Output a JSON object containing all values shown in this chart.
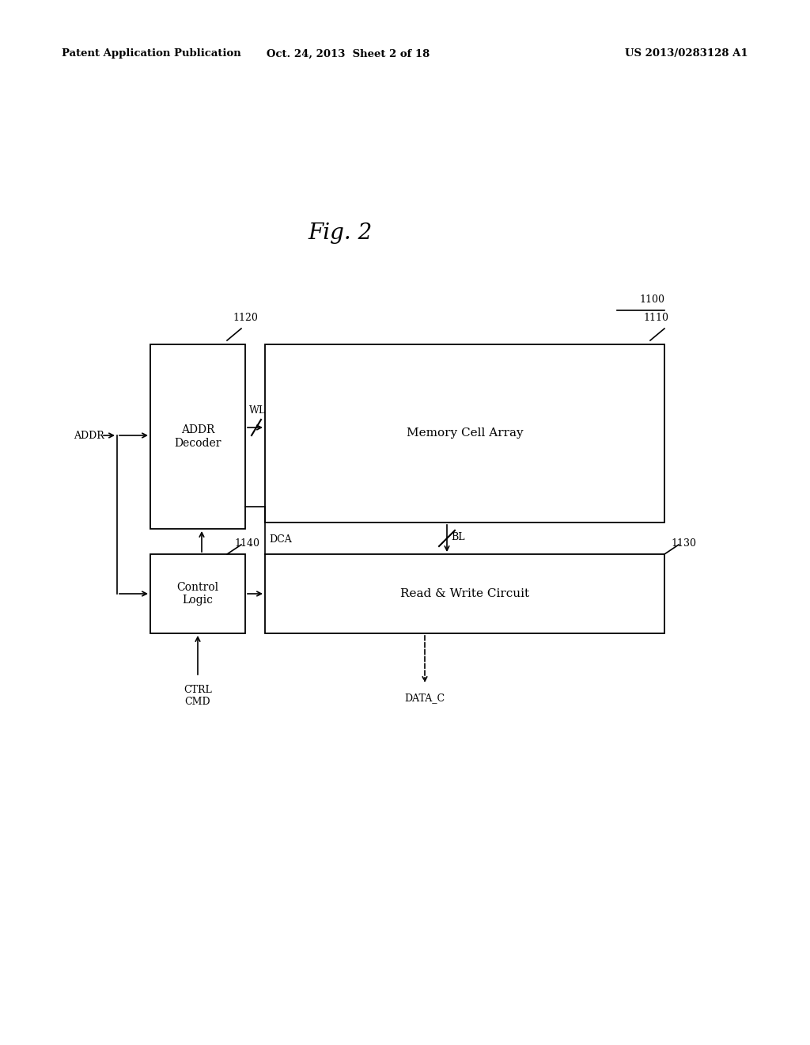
{
  "background_color": "#ffffff",
  "header_left": "Patent Application Publication",
  "header_mid": "Oct. 24, 2013  Sheet 2 of 18",
  "header_right": "US 2013/0283128 A1",
  "fig_title": "Fig. 2",
  "label_1100": "1100",
  "label_1110": "1110",
  "label_1120": "1120",
  "label_1130": "1130",
  "label_1140": "1140",
  "wl_label": "WL",
  "dca_label": "DCA",
  "bl_label": "BL",
  "addr_label": "ADDR",
  "ctrl_cmd_label": "CTRL\nCMD",
  "data_c_label": "DATA_C",
  "addr_decoder_label": "ADDR\nDecoder",
  "memory_cell_label": "Memory Cell Array",
  "control_logic_label": "Control\nLogic",
  "read_write_label": "Read & Write Circuit"
}
